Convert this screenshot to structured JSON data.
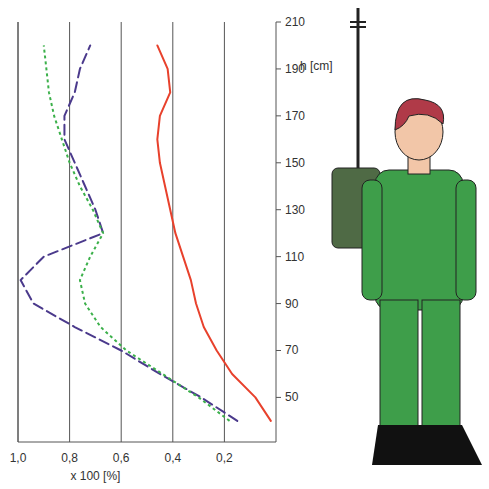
{
  "chart_data": {
    "type": "line",
    "orientation": "horizontal",
    "x_label": "x 100 [%]",
    "y_label": "h [cm]",
    "xlim": [
      1.0,
      0
    ],
    "ylim": [
      31,
      210
    ],
    "xticks": [
      {
        "value": 1.0,
        "label": "1,0"
      },
      {
        "value": 0.8,
        "label": "0,8"
      },
      {
        "value": 0.6,
        "label": "0,6"
      },
      {
        "value": 0.4,
        "label": "0,4"
      },
      {
        "value": 0.2,
        "label": "0,2"
      }
    ],
    "yticks": [
      50,
      70,
      90,
      110,
      130,
      150,
      170,
      190,
      210
    ],
    "grid": true,
    "series": [
      {
        "color": "#e8412c",
        "line_style": "solid",
        "y": [
          40,
          50,
          60,
          70,
          80,
          90,
          100,
          110,
          120,
          130,
          140,
          150,
          160,
          170,
          180,
          190,
          200
        ],
        "values": [
          0.02,
          0.08,
          0.17,
          0.23,
          0.28,
          0.31,
          0.33,
          0.36,
          0.39,
          0.41,
          0.43,
          0.45,
          0.46,
          0.45,
          0.41,
          0.42,
          0.46
        ]
      },
      {
        "color": "#4b3a8c",
        "line_style": "dashed",
        "y": [
          40,
          50,
          60,
          70,
          80,
          90,
          100,
          110,
          120,
          130,
          140,
          150,
          160,
          170,
          180,
          190,
          200
        ],
        "values": [
          0.15,
          0.29,
          0.45,
          0.6,
          0.78,
          0.94,
          0.99,
          0.9,
          0.67,
          0.7,
          0.74,
          0.78,
          0.82,
          0.82,
          0.78,
          0.76,
          0.72
        ]
      },
      {
        "color": "#3bb04a",
        "line_style": "dotted",
        "y": [
          40,
          50,
          60,
          70,
          80,
          90,
          100,
          110,
          120,
          130,
          140,
          150,
          160,
          170,
          180,
          190,
          200
        ],
        "values": [
          0.18,
          0.3,
          0.44,
          0.58,
          0.68,
          0.74,
          0.76,
          0.72,
          0.67,
          0.71,
          0.76,
          0.8,
          0.83,
          0.86,
          0.88,
          0.89,
          0.9
        ]
      }
    ]
  }
}
